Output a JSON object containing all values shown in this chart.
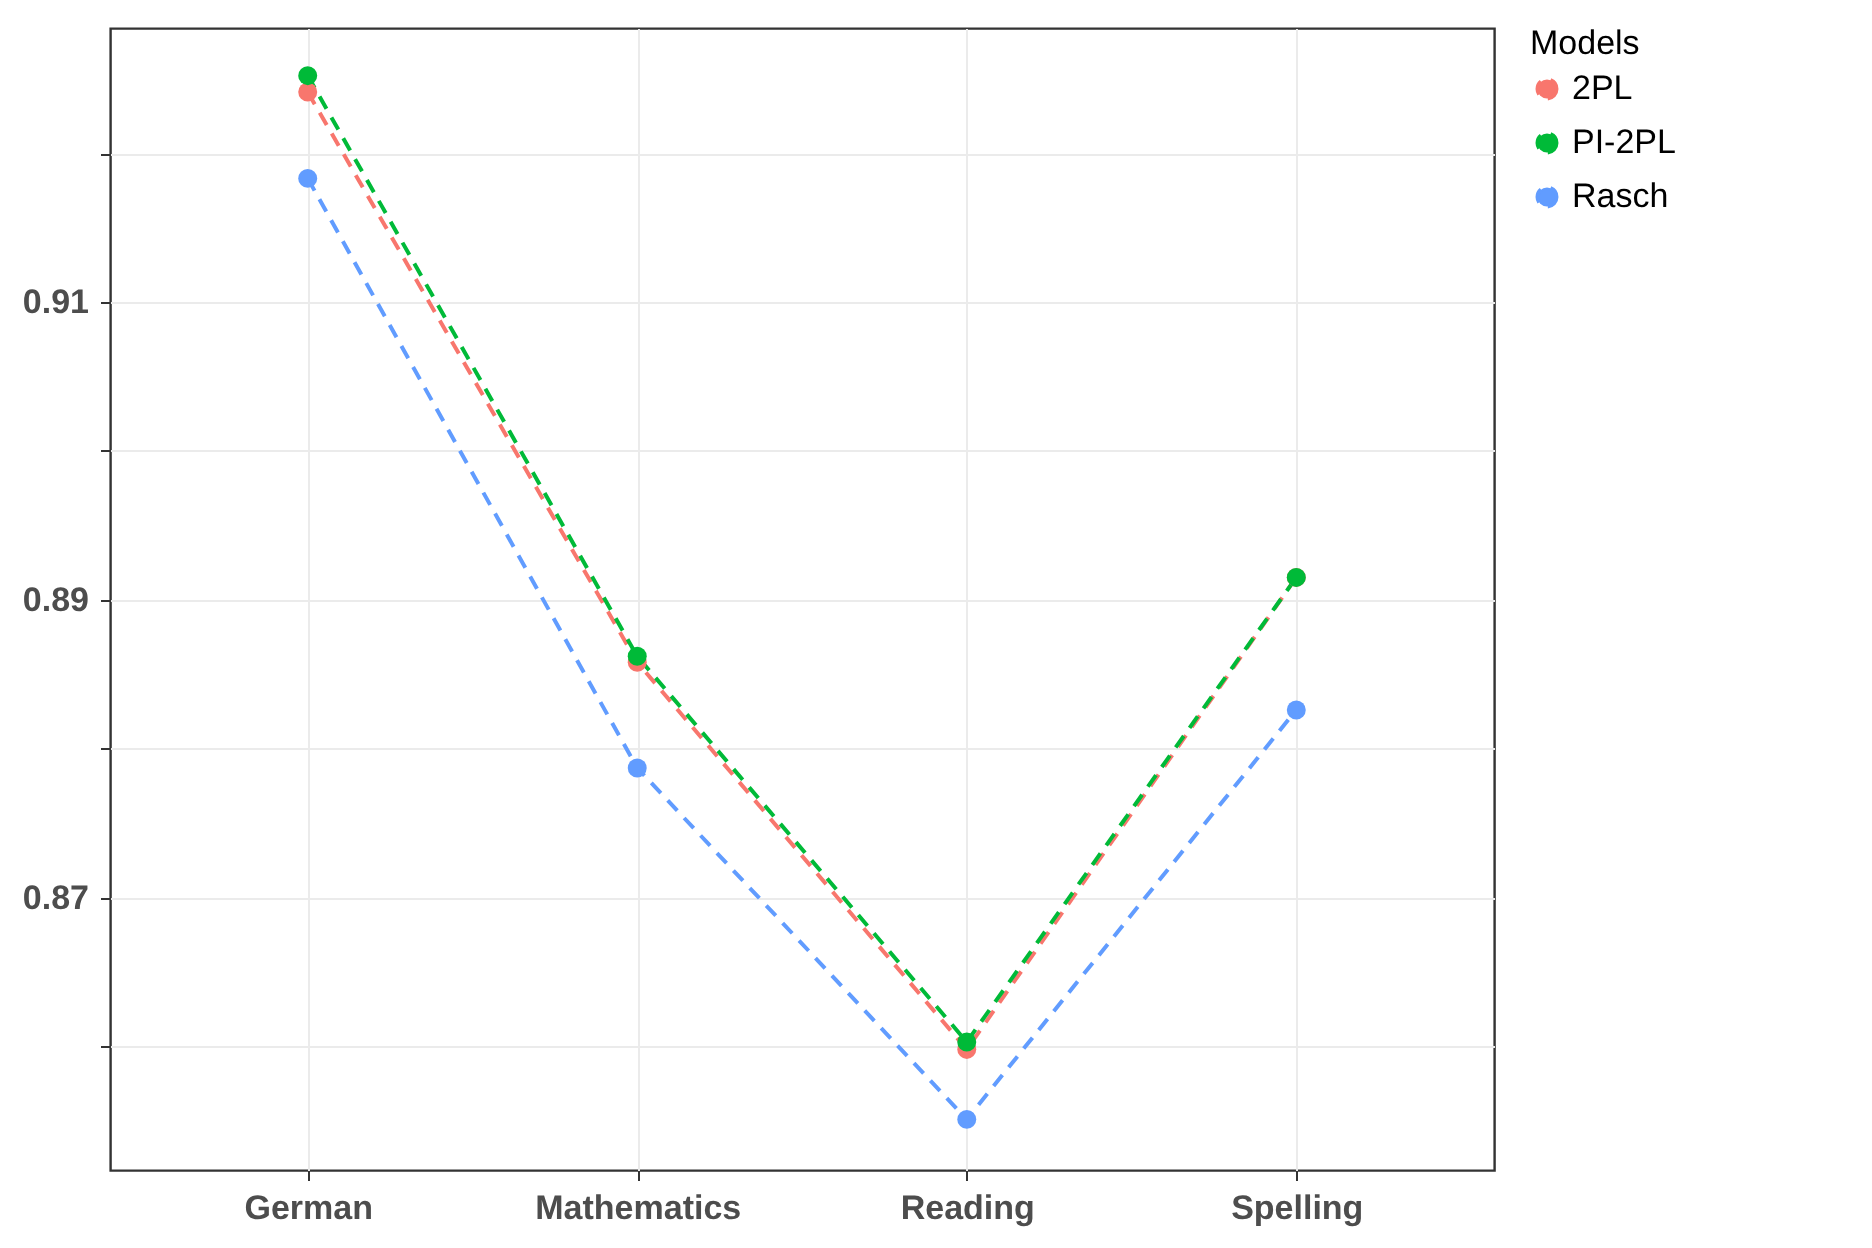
{
  "chart_data": {
    "type": "line",
    "categories": [
      "German",
      "Mathematics",
      "Reading",
      "Spelling"
    ],
    "series": [
      {
        "name": "2PL",
        "color": "#f8766d",
        "values": [
          0.9241,
          0.8858,
          0.8598,
          0.8915
        ]
      },
      {
        "name": "PI-2PL",
        "color": "#00ba38",
        "values": [
          0.9252,
          0.8862,
          0.8603,
          0.8915
        ]
      },
      {
        "name": "Rasch",
        "color": "#619cff",
        "values": [
          0.9183,
          0.8787,
          0.8551,
          0.8826
        ]
      }
    ],
    "legend_title": "Models",
    "legend": "right",
    "marker": "circle",
    "line_style": "dashed",
    "grid": true,
    "ylim": [
      0.8517,
      0.9284
    ],
    "yticks": [
      {
        "value": 0.86,
        "label": null
      },
      0.87,
      {
        "value": 0.88,
        "label": null
      },
      0.89,
      {
        "value": 0.9,
        "label": null
      },
      0.91,
      {
        "value": 0.92,
        "label": null
      }
    ]
  }
}
